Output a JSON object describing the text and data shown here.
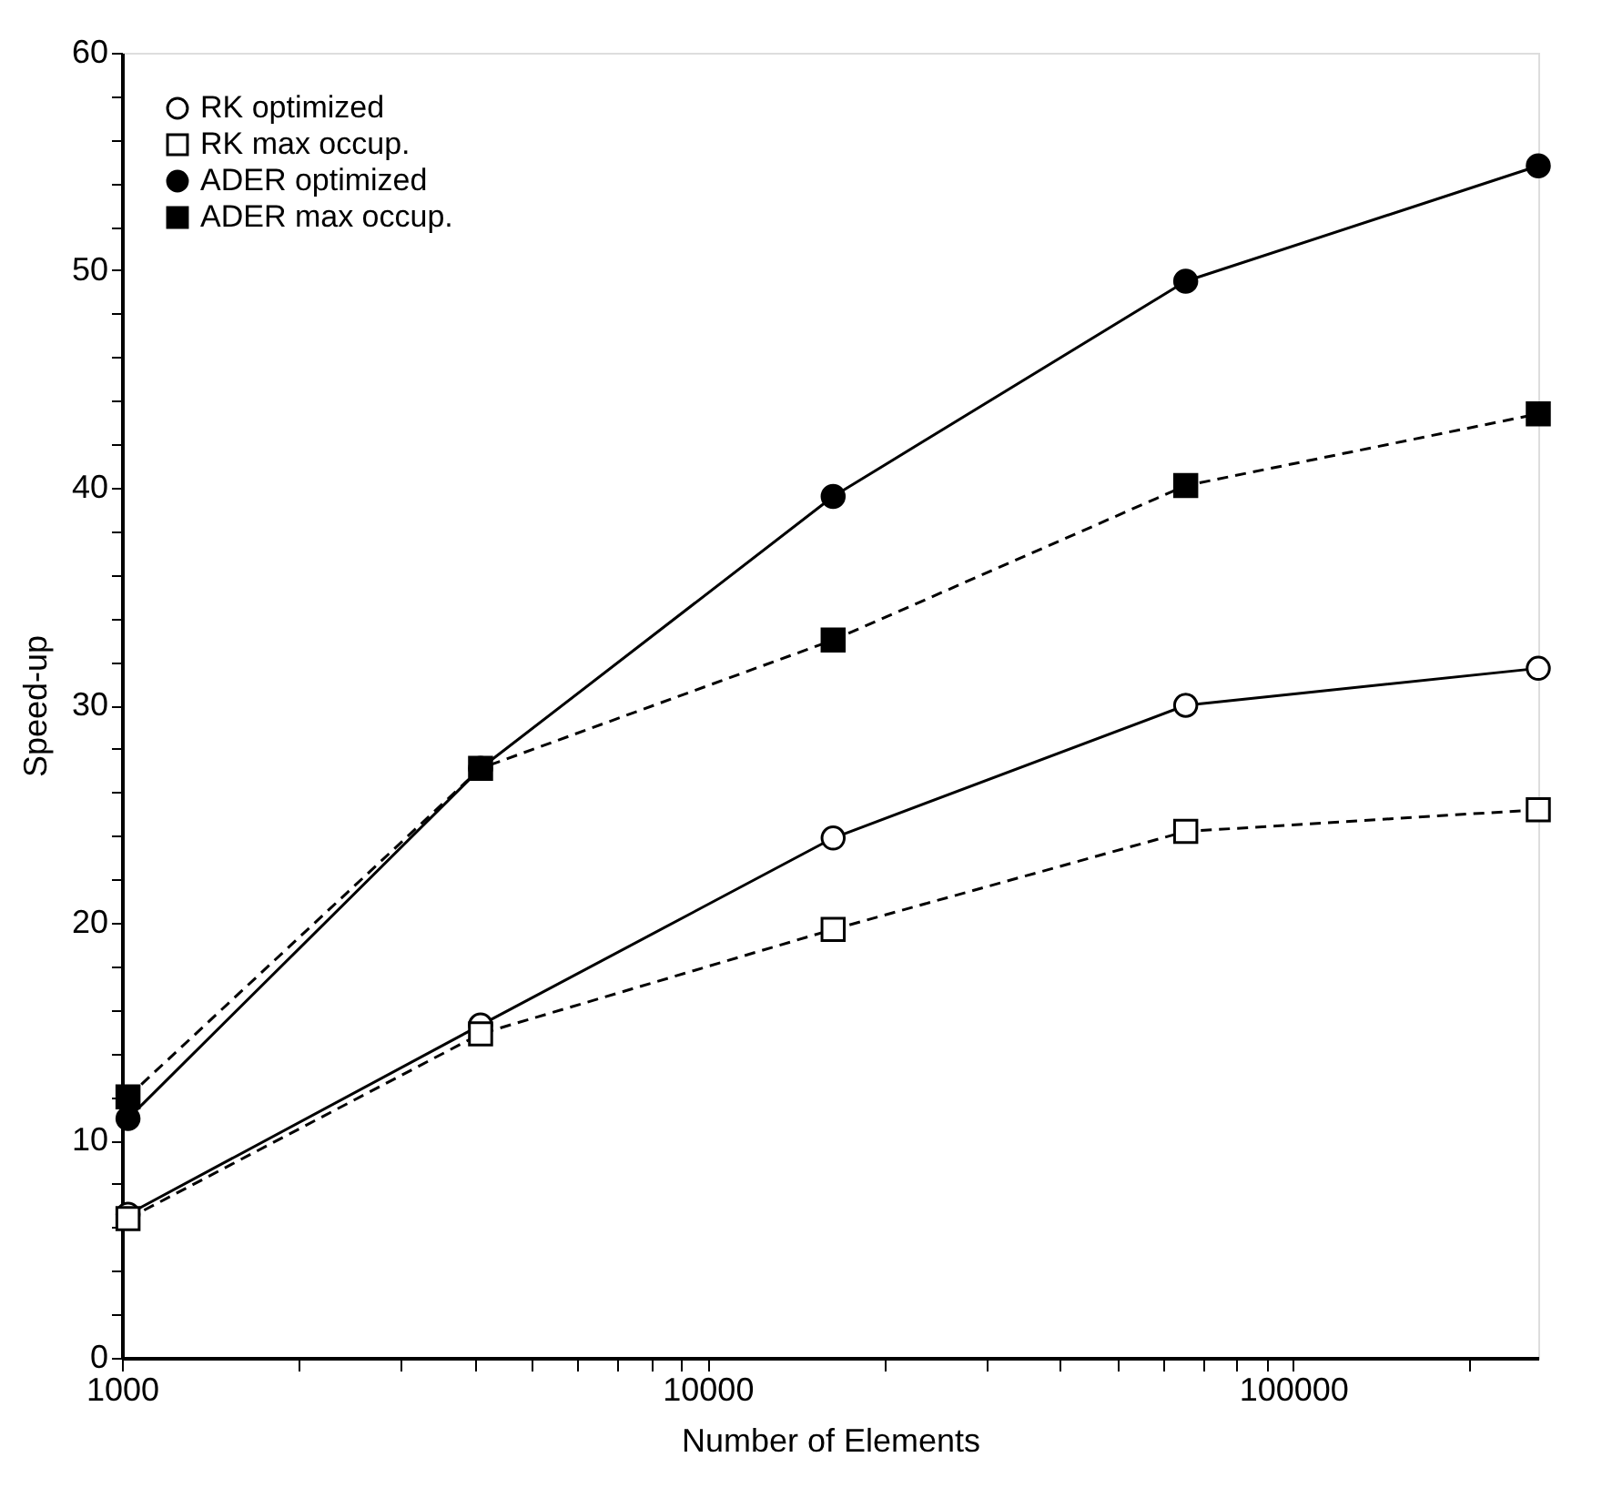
{
  "chart_data": {
    "type": "line",
    "xlabel": "Number of Elements",
    "ylabel": "Speed-up",
    "log": "x",
    "grid": false,
    "legend": "top left",
    "x": [
      1024,
      4096,
      16384,
      65536,
      262144
    ],
    "xlim": [
      1000,
      262144
    ],
    "xticks": [
      1000,
      {
        "value": 2000,
        "label": null
      },
      {
        "value": 3000,
        "label": null
      },
      {
        "value": 4000,
        "label": null
      },
      {
        "value": 5000,
        "label": null
      },
      {
        "value": 6000,
        "label": null
      },
      {
        "value": 7000,
        "label": null
      },
      {
        "value": 8000,
        "label": null
      },
      {
        "value": 9000,
        "label": null
      },
      10000,
      {
        "value": 20000,
        "label": null
      },
      {
        "value": 30000,
        "label": null
      },
      {
        "value": 40000,
        "label": null
      },
      {
        "value": 50000,
        "label": null
      },
      {
        "value": 60000,
        "label": null
      },
      {
        "value": 70000,
        "label": null
      },
      {
        "value": 80000,
        "label": null
      },
      {
        "value": 90000,
        "label": null
      },
      100000,
      {
        "value": 200000,
        "label": null
      }
    ],
    "ylim": [
      0,
      60
    ],
    "yticks": [
      0,
      {
        "value": 2,
        "label": null
      },
      {
        "value": 4,
        "label": null
      },
      {
        "value": 6,
        "label": null
      },
      {
        "value": 8,
        "label": null
      },
      10,
      {
        "value": 12,
        "label": null
      },
      {
        "value": 14,
        "label": null
      },
      {
        "value": 16,
        "label": null
      },
      {
        "value": 18,
        "label": null
      },
      20,
      {
        "value": 22,
        "label": null
      },
      {
        "value": 24,
        "label": null
      },
      {
        "value": 26,
        "label": null
      },
      {
        "value": 28,
        "label": null
      },
      30,
      {
        "value": 32,
        "label": null
      },
      {
        "value": 34,
        "label": null
      },
      {
        "value": 36,
        "label": null
      },
      {
        "value": 38,
        "label": null
      },
      40,
      {
        "value": 42,
        "label": null
      },
      {
        "value": 44,
        "label": null
      },
      {
        "value": 46,
        "label": null
      },
      {
        "value": 48,
        "label": null
      },
      50,
      {
        "value": 52,
        "label": null
      },
      {
        "value": 54,
        "label": null
      },
      {
        "value": 56,
        "label": null
      },
      {
        "value": 58,
        "label": null
      },
      60
    ],
    "series": [
      {
        "name": "RK optimized",
        "color": "#000000",
        "marker": "circle",
        "line_style": "solid",
        "values": [
          6.6,
          15.3,
          23.9,
          30.0,
          31.7
        ]
      },
      {
        "name": "RK max occup.",
        "color": "#000000",
        "marker": "square",
        "line_style": "dashed",
        "values": [
          6.4,
          14.9,
          19.7,
          24.2,
          25.2
        ]
      },
      {
        "name": "ADER optimized",
        "color": "#000000",
        "marker": "circle",
        "line_style": "solid",
        "values": [
          11.0,
          27.1,
          39.6,
          49.5,
          54.8
        ]
      },
      {
        "name": "ADER max occup.",
        "color": "#000000",
        "marker": "square",
        "line_style": "dashed",
        "values": [
          12.0,
          27.1,
          33.0,
          40.1,
          43.4
        ]
      }
    ]
  }
}
